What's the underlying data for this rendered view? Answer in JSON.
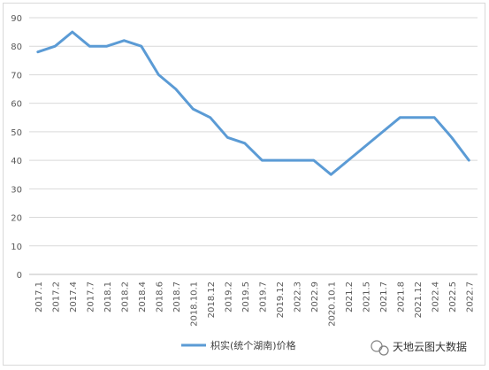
{
  "chart_data": {
    "type": "line",
    "title": "",
    "xlabel": "",
    "ylabel": "",
    "ylim": [
      0,
      90
    ],
    "yticks": [
      0,
      10,
      20,
      30,
      40,
      50,
      60,
      70,
      80,
      90
    ],
    "grid": true,
    "legend_position": "bottom",
    "categories": [
      "2017.1",
      "2017.2",
      "2017.4",
      "2017.7",
      "2018.1",
      "2018.2",
      "2018.4",
      "2018.6",
      "2018.7",
      "2018.10.1",
      "2018.12",
      "2019.2",
      "2019.5",
      "2019.7",
      "2019.12",
      "2022.3",
      "2022.9",
      "2020.10.1",
      "2021.2",
      "2021.5",
      "2021.7",
      "2021.8",
      "2021.12",
      "2022.4",
      "2022.5",
      "2022.7"
    ],
    "series": [
      {
        "name": "枳实(统个湖南)价格",
        "color": "#5b9bd5",
        "values": [
          78,
          80,
          85,
          80,
          80,
          82,
          80,
          70,
          65,
          58,
          55,
          48,
          46,
          40,
          40,
          40,
          40,
          35,
          40,
          45,
          50,
          55,
          55,
          55,
          48,
          40
        ]
      }
    ]
  },
  "watermark": {
    "text": "天地云图大数据",
    "icon": "wechat-icon"
  }
}
